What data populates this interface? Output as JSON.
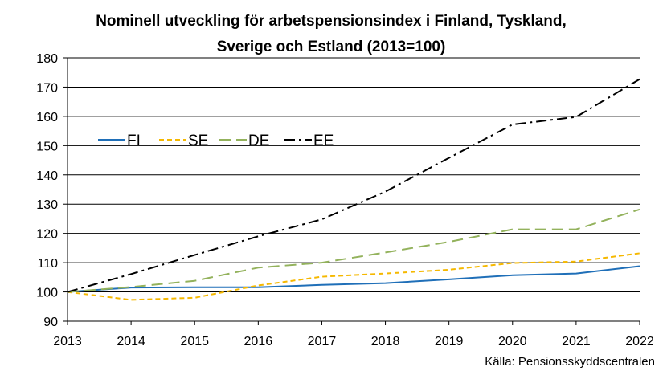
{
  "chart_data": {
    "type": "line",
    "title_line1": "Nominell utveckling för arbetspensionsindex i Finland, Tyskland,",
    "title_line2": "Sverige och Estland  (2013=100)",
    "source": "Källa: Pensionsskyddscentralen",
    "xlabel": "",
    "ylabel": "",
    "x": [
      "2013",
      "2014",
      "2015",
      "2016",
      "2017",
      "2018",
      "2019",
      "2020",
      "2021",
      "2022"
    ],
    "ylim": [
      90,
      180
    ],
    "yticks": [
      "90",
      "100",
      "110",
      "120",
      "130",
      "140",
      "150",
      "160",
      "170",
      "180"
    ],
    "grid": true,
    "legend_position": "upper-left",
    "series": [
      {
        "name": "FI",
        "color": "#1F6FB8",
        "dash": "solid",
        "values": [
          100,
          101.5,
          101.6,
          101.6,
          102.4,
          103.0,
          104.3,
          105.7,
          106.3,
          108.8
        ]
      },
      {
        "name": "SE",
        "color": "#F5B800",
        "dash": "dashed",
        "values": [
          100,
          97.3,
          98.0,
          102.2,
          105.2,
          106.3,
          107.6,
          109.9,
          110.4,
          113.2
        ]
      },
      {
        "name": "DE",
        "color": "#93B25C",
        "dash": "longdash",
        "values": [
          100,
          101.7,
          103.8,
          108.3,
          110.0,
          113.5,
          117.1,
          121.4,
          121.4,
          128.2
        ]
      },
      {
        "name": "EE",
        "color": "#000000",
        "dash": "dashdot",
        "values": [
          100,
          106.1,
          112.6,
          119.0,
          124.8,
          134.3,
          145.8,
          157.2,
          159.8,
          172.7
        ]
      }
    ]
  }
}
